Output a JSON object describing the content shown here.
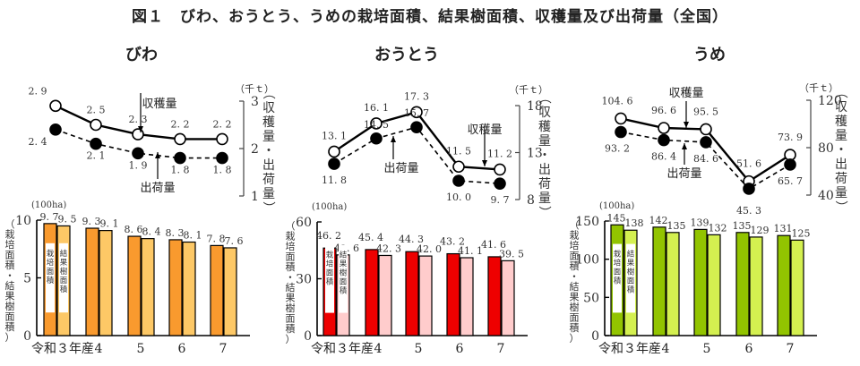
{
  "figure": {
    "title": "図１　びわ、おうとう、うめの栽培面積、結果樹面積、収穫量及び出荷量（全国）"
  },
  "labels": {
    "harvest": "収穫量",
    "shipment": "出荷量",
    "unit_line": "（千ｔ）",
    "unit_bar": "(100ha)",
    "line_axis_title": "（収穫量・出荷量）",
    "bar_axis_title": "（栽培面積・結果樹面積）",
    "legend_planted": "栽培面積",
    "legend_bearing": "結果樹面積"
  },
  "chart_data": [
    {
      "name": "びわ",
      "type": "line",
      "title": "びわ",
      "categories": [
        "令和３年産",
        "4",
        "5",
        "6",
        "7"
      ],
      "ylabel": "収穫量・出荷量（千ｔ）",
      "ylim": [
        1,
        3
      ],
      "yticks": [
        1,
        2,
        3
      ],
      "series": [
        {
          "name": "収穫量",
          "values": [
            2.9,
            2.5,
            2.3,
            2.2,
            2.2
          ],
          "style": "solid-open-circle"
        },
        {
          "name": "出荷量",
          "values": [
            2.4,
            2.1,
            1.9,
            1.8,
            1.8
          ],
          "style": "dashed-filled-circle"
        }
      ]
    },
    {
      "name": "びわ",
      "type": "bar",
      "categories": [
        "令和３年産",
        "4",
        "5",
        "6",
        "7"
      ],
      "ylabel": "栽培面積・結果樹面積（100ha）",
      "ylim": [
        0,
        10
      ],
      "yticks": [
        0,
        5,
        10
      ],
      "colors": [
        "#f99a2e",
        "#fdc866"
      ],
      "series": [
        {
          "name": "栽培面積",
          "values": [
            9.7,
            9.3,
            8.6,
            8.3,
            7.8
          ]
        },
        {
          "name": "結果樹面積",
          "values": [
            9.5,
            9.1,
            8.4,
            8.1,
            7.6
          ]
        }
      ]
    },
    {
      "name": "おうとう",
      "type": "line",
      "title": "おうとう",
      "categories": [
        "令和３年産",
        "4",
        "5",
        "6",
        "7"
      ],
      "ylabel": "収穫量・出荷量（千ｔ）",
      "ylim": [
        8,
        18
      ],
      "yticks": [
        8,
        13,
        18
      ],
      "series": [
        {
          "name": "収穫量",
          "values": [
            13.1,
            16.1,
            17.3,
            11.5,
            11.2
          ],
          "style": "solid-open-circle"
        },
        {
          "name": "出荷量",
          "values": [
            11.8,
            14.5,
            15.7,
            10.0,
            9.7
          ],
          "style": "dashed-filled-circle"
        }
      ]
    },
    {
      "name": "おうとう",
      "type": "bar",
      "categories": [
        "令和３年産",
        "4",
        "5",
        "6",
        "7"
      ],
      "ylabel": "栽培面積・結果樹面積（100ha）",
      "ylim": [
        0,
        60
      ],
      "yticks": [
        0,
        30,
        60
      ],
      "colors": [
        "#ee0000",
        "#ffcccc"
      ],
      "series": [
        {
          "name": "栽培面積",
          "values": [
            46.2,
            45.4,
            44.3,
            43.2,
            41.6
          ]
        },
        {
          "name": "結果樹面積",
          "values": [
            42.6,
            42.3,
            42.0,
            41.1,
            39.5
          ]
        }
      ]
    },
    {
      "name": "うめ",
      "type": "line",
      "title": "うめ",
      "categories": [
        "令和３年産",
        "4",
        "5",
        "6",
        "7"
      ],
      "ylabel": "収穫量・出荷量（千ｔ）",
      "ylim": [
        40,
        120
      ],
      "yticks": [
        40,
        80,
        120
      ],
      "series": [
        {
          "name": "収穫量",
          "values": [
            104.6,
            96.6,
            95.5,
            51.6,
            73.9
          ],
          "style": "solid-open-circle"
        },
        {
          "name": "出荷量",
          "values": [
            93.2,
            86.4,
            84.6,
            45.3,
            65.7
          ],
          "style": "dashed-filled-circle"
        }
      ]
    },
    {
      "name": "うめ",
      "type": "bar",
      "categories": [
        "令和３年産",
        "4",
        "5",
        "6",
        "7"
      ],
      "ylabel": "栽培面積・結果樹面積（100ha）",
      "ylim": [
        0,
        150
      ],
      "yticks": [
        0,
        50,
        100,
        150
      ],
      "colors": [
        "#92c400",
        "#d4f050"
      ],
      "series": [
        {
          "name": "栽培面積",
          "values": [
            145,
            142,
            139,
            135,
            131
          ]
        },
        {
          "name": "結果樹面積",
          "values": [
            138,
            135,
            132,
            129,
            125
          ]
        }
      ]
    }
  ]
}
